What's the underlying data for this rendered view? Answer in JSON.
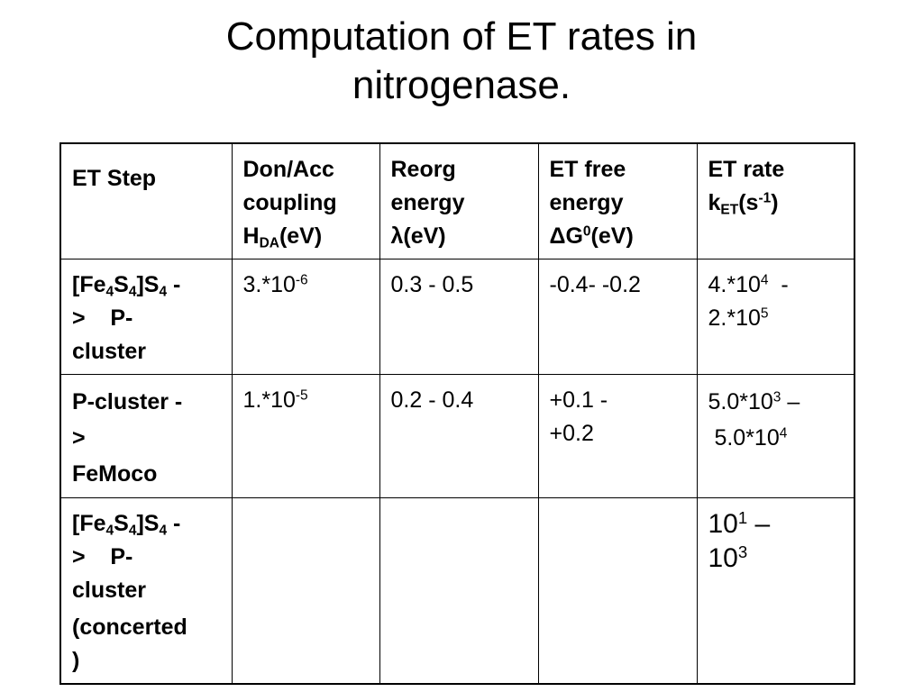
{
  "title": {
    "line1": "Computation of ET rates in",
    "line2": "nitrogenase."
  },
  "table": {
    "headers": {
      "et_step": "ET Step",
      "coupling": {
        "l1": "Don/Acc",
        "l2": "coupling",
        "l3_main": "H",
        "l3_sub": "DA",
        "l3_tail": "(eV)"
      },
      "reorg": {
        "l1": "Reorg",
        "l2": "energy",
        "l3": "λ(eV)"
      },
      "free_energy": {
        "l1": "ET free",
        "l2": "energy",
        "l3_main": "ΔG",
        "l3_sup": "0",
        "l3_tail": "(eV)"
      },
      "rate": {
        "l1": "ET rate",
        "l2_main": "k",
        "l2_sub": "ET",
        "l2_mid": "(s",
        "l2_sup": "-1",
        "l2_tail": ")"
      }
    },
    "rows": [
      {
        "step": {
          "a": "[Fe",
          "s1": "4",
          "b": "S",
          "s2": "4",
          "c": "]S",
          "s3": "4",
          "d": " -",
          "l2": ">    P-",
          "l3": "cluster"
        },
        "coupling": {
          "base": "3.*10",
          "exp": "-6"
        },
        "reorg": "0.3 - 0.5",
        "free_energy": {
          "l1": "-0.4- -0.2"
        },
        "rate": {
          "l1_base": "4.*10",
          "l1_exp": "4",
          "l1_tail": "  -",
          "l2_base": "2.*10",
          "l2_exp": "5"
        }
      },
      {
        "step": {
          "l1": "P-cluster -",
          "l2": ">",
          "l3": "FeMoco"
        },
        "coupling": {
          "base": "1.*10",
          "exp": "-5"
        },
        "reorg": "0.2 - 0.4",
        "free_energy": {
          "l1": "+0.1 -",
          "l2": "+0.2"
        },
        "rate": {
          "l1_base": "5.0*10",
          "l1_exp": "3",
          "l1_tail": " –",
          "l2_base": " 5.0*10",
          "l2_exp": "4"
        }
      },
      {
        "step": {
          "a": "[Fe",
          "s1": "4",
          "b": "S",
          "s2": "4",
          "c": "]S",
          "s3": "4",
          "d": " -",
          "l2": ">    P-",
          "l3": "cluster",
          "l4": "(concerted",
          "l5": ")"
        },
        "rate": {
          "l1_base": "10",
          "l1_exp": "1",
          "l1_tail": " –",
          "l2_base": "10",
          "l2_exp": "3"
        }
      }
    ]
  }
}
